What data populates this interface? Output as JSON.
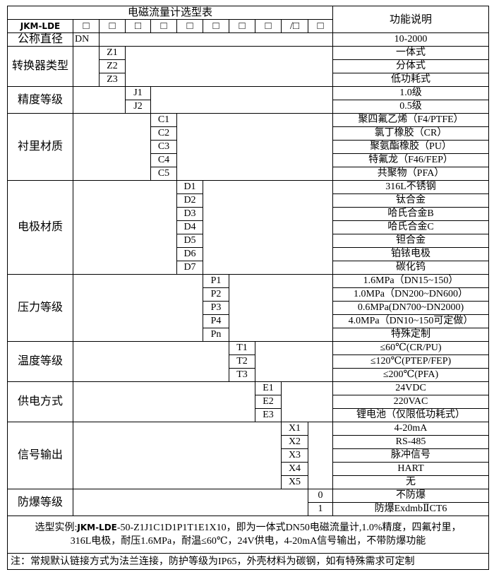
{
  "header": {
    "title": "电磁流量计选型表",
    "function_header": "功能说明",
    "model": "JKM-LDE",
    "boxes": [
      "□",
      "□",
      "□",
      "□",
      "□",
      "□",
      "□",
      "□",
      "/□",
      "□"
    ]
  },
  "groups": [
    {
      "label": "公称直径",
      "col": 1,
      "options": [
        {
          "code": "DN",
          "desc": "10-2000"
        }
      ]
    },
    {
      "label": "转换器类型",
      "col": 2,
      "options": [
        {
          "code": "Z1",
          "desc": "一体式"
        },
        {
          "code": "Z2",
          "desc": "分体式"
        },
        {
          "code": "Z3",
          "desc": "低功耗式"
        }
      ]
    },
    {
      "label": "精度等级",
      "col": 3,
      "options": [
        {
          "code": "J1",
          "desc": "1.0级"
        },
        {
          "code": "J2",
          "desc": "0.5级"
        }
      ]
    },
    {
      "label": "衬里材质",
      "col": 4,
      "options": [
        {
          "code": "C1",
          "desc": "聚四氟乙烯（F4/PTFE）"
        },
        {
          "code": "C2",
          "desc": "氯丁橡胶（CR）"
        },
        {
          "code": "C3",
          "desc": "聚氨酯橡胶（PU）"
        },
        {
          "code": "C4",
          "desc": "特氟龙（F46/FEP）"
        },
        {
          "code": "C5",
          "desc": "共聚物（PFA）"
        }
      ]
    },
    {
      "label": "电极材质",
      "col": 5,
      "options": [
        {
          "code": "D1",
          "desc": "316L不锈钢"
        },
        {
          "code": "D2",
          "desc": "钛合金"
        },
        {
          "code": "D3",
          "desc": "哈氏合金B"
        },
        {
          "code": "D4",
          "desc": "哈氏合金C"
        },
        {
          "code": "D5",
          "desc": "钽合金"
        },
        {
          "code": "D6",
          "desc": "铂铱电极"
        },
        {
          "code": "D7",
          "desc": "碳化钨"
        }
      ]
    },
    {
      "label": "压力等级",
      "col": 6,
      "options": [
        {
          "code": "P1",
          "desc": "1.6MPa（DN15~150）"
        },
        {
          "code": "P2",
          "desc": "1.0MPa（DN200~DN600）"
        },
        {
          "code": "P3",
          "desc": "0.6MPa(DN700~DN2000)"
        },
        {
          "code": "P4",
          "desc": "4.0MPa（DN10~150可定做）"
        },
        {
          "code": "Pn",
          "desc": "特殊定制"
        }
      ]
    },
    {
      "label": "温度等级",
      "col": 7,
      "options": [
        {
          "code": "T1",
          "desc": "≤60℃(CR/PU)"
        },
        {
          "code": "T2",
          "desc": "≤120℃(PTEP/FEP)"
        },
        {
          "code": "T3",
          "desc": "≤200℃(PFA)"
        }
      ]
    },
    {
      "label": "供电方式",
      "col": 8,
      "options": [
        {
          "code": "E1",
          "desc": "24VDC"
        },
        {
          "code": "E2",
          "desc": "220VAC"
        },
        {
          "code": "E3",
          "desc": "锂电池（仅限低功耗式）"
        }
      ]
    },
    {
      "label": "信号输出",
      "col": 9,
      "options": [
        {
          "code": "X1",
          "desc": "4-20mA"
        },
        {
          "code": "X2",
          "desc": "RS-485"
        },
        {
          "code": "X3",
          "desc": "脉冲信号"
        },
        {
          "code": "X4",
          "desc": "HART"
        },
        {
          "code": "X5",
          "desc": "无"
        }
      ]
    },
    {
      "label": "防爆等级",
      "col": 10,
      "options": [
        {
          "code": "0",
          "desc": "不防爆"
        },
        {
          "code": "1",
          "desc": "防爆ExdmbⅡCT6"
        }
      ]
    }
  ],
  "footer": {
    "example_prefix": "选型实例:",
    "example_model": "JKM-LDE",
    "example_line1": "-50-Z1J1C1D1P1T1E1X10，即为一体式DN50电磁流量计,1.0%精度，四氟衬里，",
    "example_line2": "316L电极，耐压1.6MPa，耐温≤60℃，24V供电，4-20mA信号输出，不带防爆功能",
    "note": "注：常规默认链接方式为法兰连接，防护等级为IP65，外壳材料为碳钢，如有特殊需求可定制"
  }
}
